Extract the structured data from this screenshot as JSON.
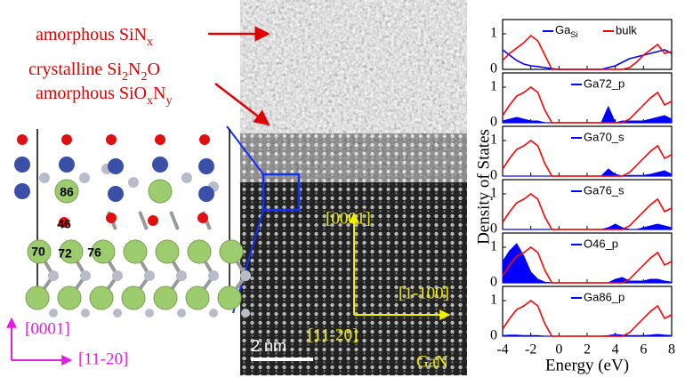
{
  "annotations": {
    "sinx": [
      {
        "text": "amorphous SiN"
      },
      {
        "text": "x",
        "sub": true
      }
    ],
    "si2n2o": [
      {
        "text": "crystalline Si"
      },
      {
        "text": "2",
        "sub": true
      },
      {
        "text": "N"
      },
      {
        "text": "2",
        "sub": true
      },
      {
        "text": "O"
      }
    ],
    "sioxny": [
      {
        "text": "amorphous SiO"
      },
      {
        "text": "x",
        "sub": true
      },
      {
        "text": "N"
      },
      {
        "text": "y",
        "sub": true
      }
    ]
  },
  "model": {
    "atom_labels": [
      "86",
      "46",
      "70",
      "72",
      "76"
    ],
    "axes": [
      "[0001]",
      "[11-20]"
    ]
  },
  "tem": {
    "directions": [
      "[0001]",
      "[1-100]",
      "[11-20]"
    ],
    "scale_bar": "2 nm",
    "material": "GaN"
  },
  "dos_axes": {
    "ylabel": "Density of  States",
    "xlabel": "Energy (eV)"
  },
  "chart_data": [
    {
      "type": "line",
      "xlim": [
        -4,
        8
      ],
      "ylim": [
        0,
        1.4
      ],
      "yticks": [
        0,
        1
      ],
      "x": [
        -4,
        -3.5,
        -3,
        -2.5,
        -2,
        -1.5,
        -1,
        -0.5,
        0,
        0.5,
        1,
        1.5,
        2,
        2.5,
        3,
        3.5,
        4,
        4.5,
        5,
        5.5,
        6,
        6.5,
        7,
        7.5,
        8
      ],
      "series": [
        {
          "name": [
            {
              "text": "Ga"
            },
            {
              "text": "Si",
              "sub": true
            }
          ],
          "color": "#0000ff",
          "area": false,
          "values": [
            0.55,
            0.4,
            0.25,
            0.15,
            0.1,
            0.08,
            0.05,
            0.02,
            0,
            0,
            0,
            0,
            0,
            0,
            0,
            0.05,
            0.1,
            0.2,
            0.3,
            0.35,
            0.4,
            0.45,
            0.5,
            0.55,
            0.45
          ]
        },
        {
          "name": "bulk",
          "color": "#ff0000",
          "area": false,
          "values": [
            0.25,
            0.45,
            0.6,
            0.75,
            0.95,
            0.8,
            0.4,
            0,
            0,
            0,
            0,
            0,
            0,
            0,
            0,
            0,
            0,
            0,
            0.05,
            0.2,
            0.4,
            0.55,
            0.7,
            0.45,
            0.5
          ]
        }
      ]
    },
    {
      "type": "line",
      "xlim": [
        -4,
        8
      ],
      "ylim": [
        0,
        1.4
      ],
      "yticks": [
        0,
        1
      ],
      "x": [
        -4,
        -3.5,
        -3,
        -2.5,
        -2,
        -1.5,
        -1,
        -0.5,
        0,
        0.5,
        1,
        1.5,
        2,
        2.5,
        3,
        3.5,
        4,
        4.5,
        5,
        5.5,
        6,
        6.5,
        7,
        7.5,
        8
      ],
      "series": [
        {
          "name": "Ga72_p",
          "color": "#0000ff",
          "area": true,
          "values": [
            0.05,
            0.1,
            0.15,
            0.1,
            0.05,
            0.05,
            0,
            0,
            0,
            0,
            0,
            0,
            0,
            0,
            0,
            0.45,
            0,
            0.05,
            0.05,
            0.05,
            0.05,
            0.1,
            0.15,
            0.2,
            0.1
          ]
        },
        {
          "color": "#ff0000",
          "area": false,
          "values": [
            0.2,
            0.5,
            0.75,
            0.85,
            1.0,
            0.85,
            0.35,
            0,
            0,
            0,
            0,
            0,
            0,
            0,
            0,
            0,
            0,
            0,
            0.1,
            0.3,
            0.5,
            0.7,
            0.85,
            0.5,
            0.6
          ]
        }
      ]
    },
    {
      "type": "line",
      "xlim": [
        -4,
        8
      ],
      "ylim": [
        0,
        1.4
      ],
      "yticks": [
        0,
        1
      ],
      "x": [
        -4,
        -3.5,
        -3,
        -2.5,
        -2,
        -1.5,
        -1,
        -0.5,
        0,
        0.5,
        1,
        1.5,
        2,
        2.5,
        3,
        3.5,
        4,
        4.5,
        5,
        5.5,
        6,
        6.5,
        7,
        7.5,
        8
      ],
      "series": [
        {
          "name": "Ga70_s",
          "color": "#0000ff",
          "area": true,
          "values": [
            0,
            0,
            0,
            0,
            0,
            0,
            0,
            0,
            0,
            0,
            0,
            0,
            0,
            0,
            0,
            0.2,
            0.05,
            0,
            0.02,
            0.02,
            0.02,
            0.05,
            0.1,
            0.15,
            0.05
          ]
        },
        {
          "color": "#ff0000",
          "area": false,
          "values": [
            0.2,
            0.5,
            0.75,
            0.85,
            1.0,
            0.85,
            0.35,
            0,
            0,
            0,
            0,
            0,
            0,
            0,
            0,
            0,
            0,
            0,
            0.1,
            0.3,
            0.5,
            0.7,
            0.85,
            0.5,
            0.6
          ]
        }
      ]
    },
    {
      "type": "line",
      "xlim": [
        -4,
        8
      ],
      "ylim": [
        0,
        1.4
      ],
      "yticks": [
        0,
        1
      ],
      "x": [
        -4,
        -3.5,
        -3,
        -2.5,
        -2,
        -1.5,
        -1,
        -0.5,
        0,
        0.5,
        1,
        1.5,
        2,
        2.5,
        3,
        3.5,
        4,
        4.5,
        5,
        5.5,
        6,
        6.5,
        7,
        7.5,
        8
      ],
      "series": [
        {
          "name": "Ga76_s",
          "color": "#0000ff",
          "area": true,
          "values": [
            0,
            0,
            0,
            0,
            0,
            0,
            0,
            0,
            0,
            0,
            0,
            0,
            0,
            0,
            0,
            0.05,
            0.15,
            0.05,
            0,
            0,
            0.05,
            0.1,
            0.15,
            0.1,
            0.05
          ]
        },
        {
          "color": "#ff0000",
          "area": false,
          "values": [
            0.2,
            0.5,
            0.75,
            0.85,
            1.0,
            0.85,
            0.35,
            0,
            0,
            0,
            0,
            0,
            0,
            0,
            0,
            0,
            0,
            0,
            0.1,
            0.3,
            0.5,
            0.7,
            0.85,
            0.5,
            0.6
          ]
        }
      ]
    },
    {
      "type": "line",
      "xlim": [
        -4,
        8
      ],
      "ylim": [
        0,
        1.4
      ],
      "yticks": [
        0,
        1
      ],
      "x": [
        -4,
        -3.5,
        -3,
        -2.5,
        -2,
        -1.5,
        -1,
        -0.5,
        0,
        0.5,
        1,
        1.5,
        2,
        2.5,
        3,
        3.5,
        4,
        4.5,
        5,
        5.5,
        6,
        6.5,
        7,
        7.5,
        8
      ],
      "series": [
        {
          "name": "O46_p",
          "color": "#0000ff",
          "area": true,
          "values": [
            0.6,
            0.9,
            1.1,
            0.75,
            0.3,
            0.1,
            0.02,
            0,
            0,
            0,
            0,
            0,
            0,
            0,
            0,
            0,
            0.1,
            0.15,
            0.05,
            0.05,
            0.05,
            0.1,
            0.1,
            0.05,
            0.02
          ]
        },
        {
          "color": "#ff0000",
          "area": false,
          "values": [
            0.2,
            0.5,
            0.75,
            0.85,
            1.0,
            0.85,
            0.35,
            0,
            0,
            0,
            0,
            0,
            0,
            0,
            0,
            0,
            0,
            0,
            0.1,
            0.3,
            0.5,
            0.7,
            0.85,
            0.5,
            0.6
          ]
        }
      ]
    },
    {
      "type": "line",
      "xlim": [
        -4,
        8
      ],
      "ylim": [
        0,
        1.4
      ],
      "yticks": [
        0,
        1
      ],
      "xticks": [
        -4,
        -2,
        0,
        2,
        4,
        6,
        8
      ],
      "x": [
        -4,
        -3.5,
        -3,
        -2.5,
        -2,
        -1.5,
        -1,
        -0.5,
        0,
        0.5,
        1,
        1.5,
        2,
        2.5,
        3,
        3.5,
        4,
        4.5,
        5,
        5.5,
        6,
        6.5,
        7,
        7.5,
        8
      ],
      "series": [
        {
          "name": "Ga86_p",
          "color": "#0000ff",
          "area": true,
          "values": [
            0.02,
            0.03,
            0.03,
            0.02,
            0.02,
            0.02,
            0,
            0,
            0,
            0,
            0,
            0,
            0,
            0,
            0,
            0.02,
            0.05,
            0.03,
            0.02,
            0.02,
            0.02,
            0.03,
            0.05,
            0.03,
            0.02
          ]
        },
        {
          "color": "#ff0000",
          "area": false,
          "values": [
            0.2,
            0.5,
            0.75,
            0.85,
            1.0,
            0.85,
            0.35,
            0,
            0,
            0,
            0,
            0,
            0,
            0,
            0,
            0,
            0,
            0,
            0.1,
            0.3,
            0.5,
            0.7,
            0.85,
            0.5,
            0.6
          ]
        }
      ]
    }
  ]
}
